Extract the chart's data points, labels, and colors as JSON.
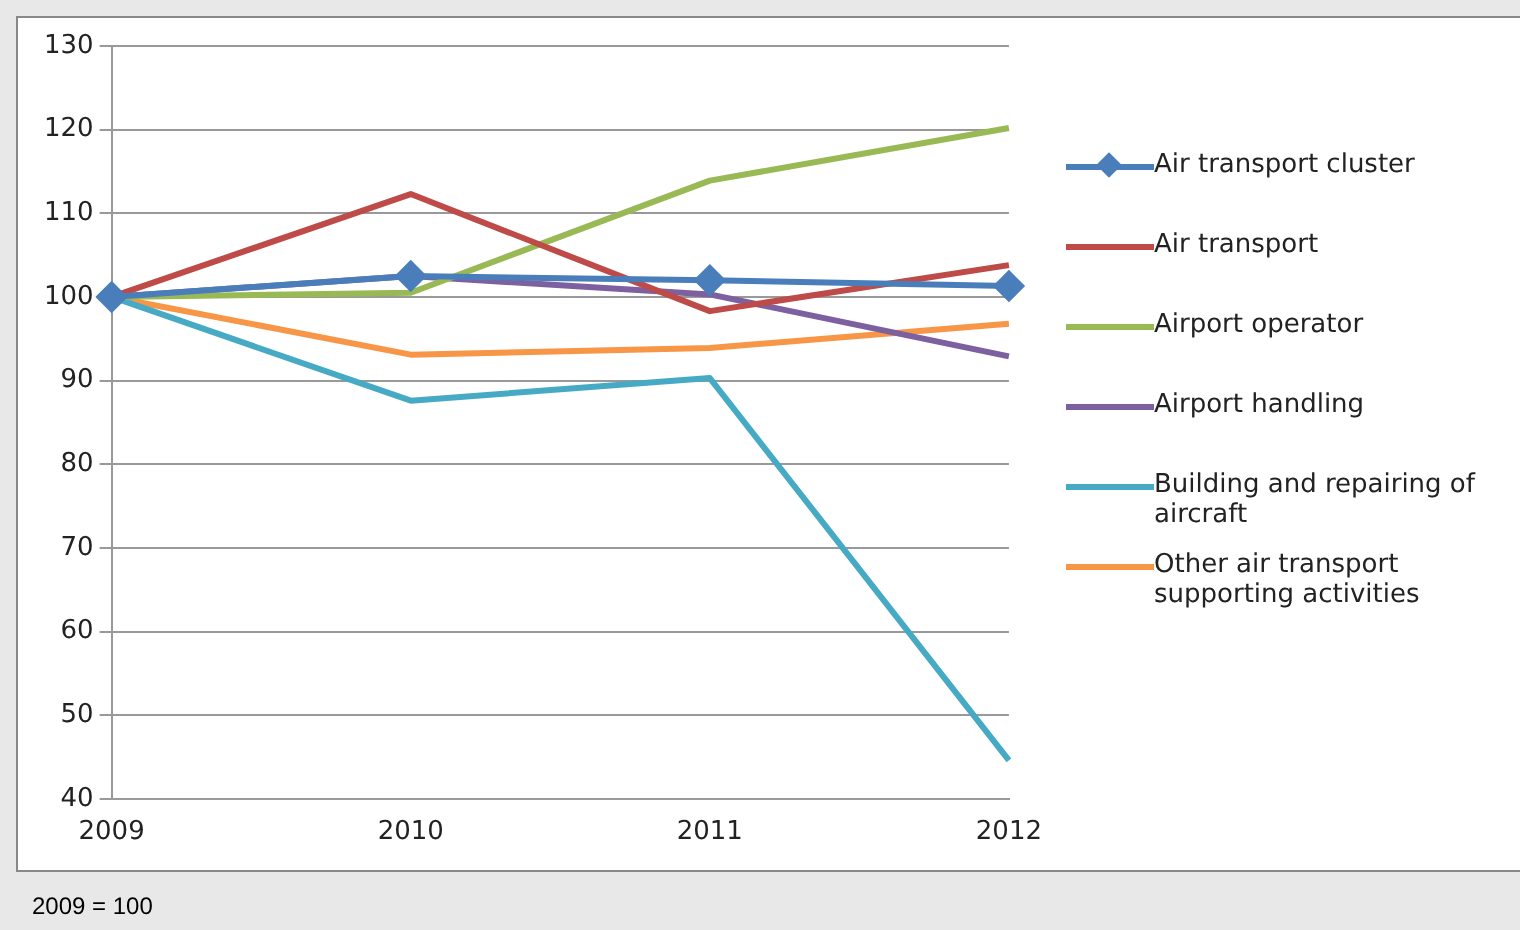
{
  "chart_data": {
    "type": "line",
    "categories": [
      "2009",
      "2010",
      "2011",
      "2012"
    ],
    "series": [
      {
        "name": "Air transport cluster",
        "color": "#4a7ebb",
        "values": [
          100,
          102.5,
          102,
          101.3
        ],
        "marker": "diamond"
      },
      {
        "name": "Air transport",
        "color": "#be4b48",
        "values": [
          100,
          112.3,
          98.3,
          103.8
        ],
        "marker": "none"
      },
      {
        "name": "Airport operator",
        "color": "#98b954",
        "values": [
          100,
          100.5,
          113.9,
          120.2
        ],
        "marker": "none"
      },
      {
        "name": "Airport handling",
        "color": "#7d60a0",
        "values": [
          100,
          102.5,
          100.3,
          92.9
        ],
        "marker": "none"
      },
      {
        "name": "Building and repairing of aircraft",
        "color": "#46aac5",
        "values": [
          100,
          87.6,
          90.3,
          44.6
        ],
        "marker": "none"
      },
      {
        "name": "Other air transport supporting activities",
        "color": "#f79646",
        "values": [
          100,
          93.1,
          93.9,
          96.8
        ],
        "marker": "none"
      }
    ],
    "ylim": [
      40,
      130
    ],
    "yticks": [
      40,
      50,
      60,
      70,
      80,
      90,
      100,
      110,
      120,
      130
    ],
    "grid": "y",
    "legend": "right",
    "line_style": "solid",
    "annotations": [
      "2009 = 100"
    ]
  }
}
